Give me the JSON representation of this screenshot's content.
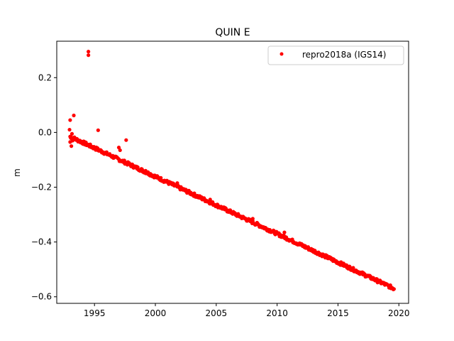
{
  "chart_data": {
    "type": "scatter",
    "title": "QUIN E",
    "xlabel": "",
    "ylabel": "m",
    "xlim": [
      1991.9,
      2020.8
    ],
    "ylim": [
      -0.624,
      0.333
    ],
    "xticks": [
      1995,
      2000,
      2005,
      2010,
      2015,
      2020
    ],
    "yticks": [
      0.2,
      0.0,
      -0.2,
      -0.4,
      -0.6
    ],
    "ytick_labels": [
      "0.2",
      "0.0",
      "−0.2",
      "−0.4",
      "−0.6"
    ],
    "grid": false,
    "legend_position": "top-right",
    "series": [
      {
        "name": "repro2018a (IGS14)",
        "color": "#ff0000",
        "marker": "circle",
        "trend": {
          "x_start": 1993.0,
          "x_end": 2019.6,
          "y_start": -0.015,
          "y_end": -0.57,
          "step": 0.05
        },
        "outliers": [
          [
            1994.5,
            0.295
          ],
          [
            1994.5,
            0.282
          ],
          [
            1993.3,
            0.062
          ],
          [
            1993.0,
            0.045
          ],
          [
            1995.3,
            0.008
          ],
          [
            1997.6,
            -0.028
          ],
          [
            1993.1,
            -0.05
          ],
          [
            1993.0,
            -0.035
          ],
          [
            1992.95,
            0.01
          ],
          [
            1993.05,
            -0.02
          ],
          [
            1993.15,
            -0.005
          ],
          [
            1993.2,
            -0.03
          ],
          [
            1997.0,
            -0.055
          ],
          [
            1997.1,
            -0.065
          ],
          [
            1999.2,
            -0.14
          ],
          [
            2001.8,
            -0.185
          ],
          [
            2008.0,
            -0.315
          ],
          [
            2010.6,
            -0.365
          ],
          [
            2004.5,
            -0.245
          ]
        ]
      }
    ]
  }
}
